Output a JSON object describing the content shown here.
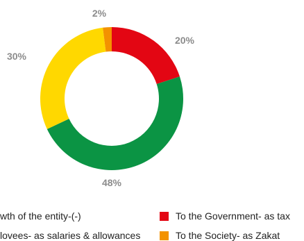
{
  "chart_data": {
    "type": "pie",
    "style": "donut",
    "slices": [
      {
        "label": "To the Government- as tax",
        "value": 20,
        "display": "20%",
        "color": "#e30613"
      },
      {
        "label": "To Employees- as salaries & allowances",
        "value": 48,
        "display": "48%",
        "color": "#0b9444"
      },
      {
        "label": "Growth of the entity-(-)",
        "value": 30,
        "display": "30%",
        "color": "#ffd800"
      },
      {
        "label": "To the Society- as Zakat",
        "value": 2,
        "display": "2%",
        "color": "#f39200"
      }
    ],
    "legend_placement": "bottom"
  },
  "legend": {
    "left": [
      {
        "text": "wth of the entity-(-)",
        "color": "#ffd800"
      },
      {
        "text": "lovees- as salaries & allowances",
        "color": "#0b9444"
      }
    ],
    "right": [
      {
        "text": "To the Government- as tax",
        "color": "#e30613"
      },
      {
        "text": "To the Society- as Zakat",
        "color": "#f39200"
      }
    ]
  }
}
